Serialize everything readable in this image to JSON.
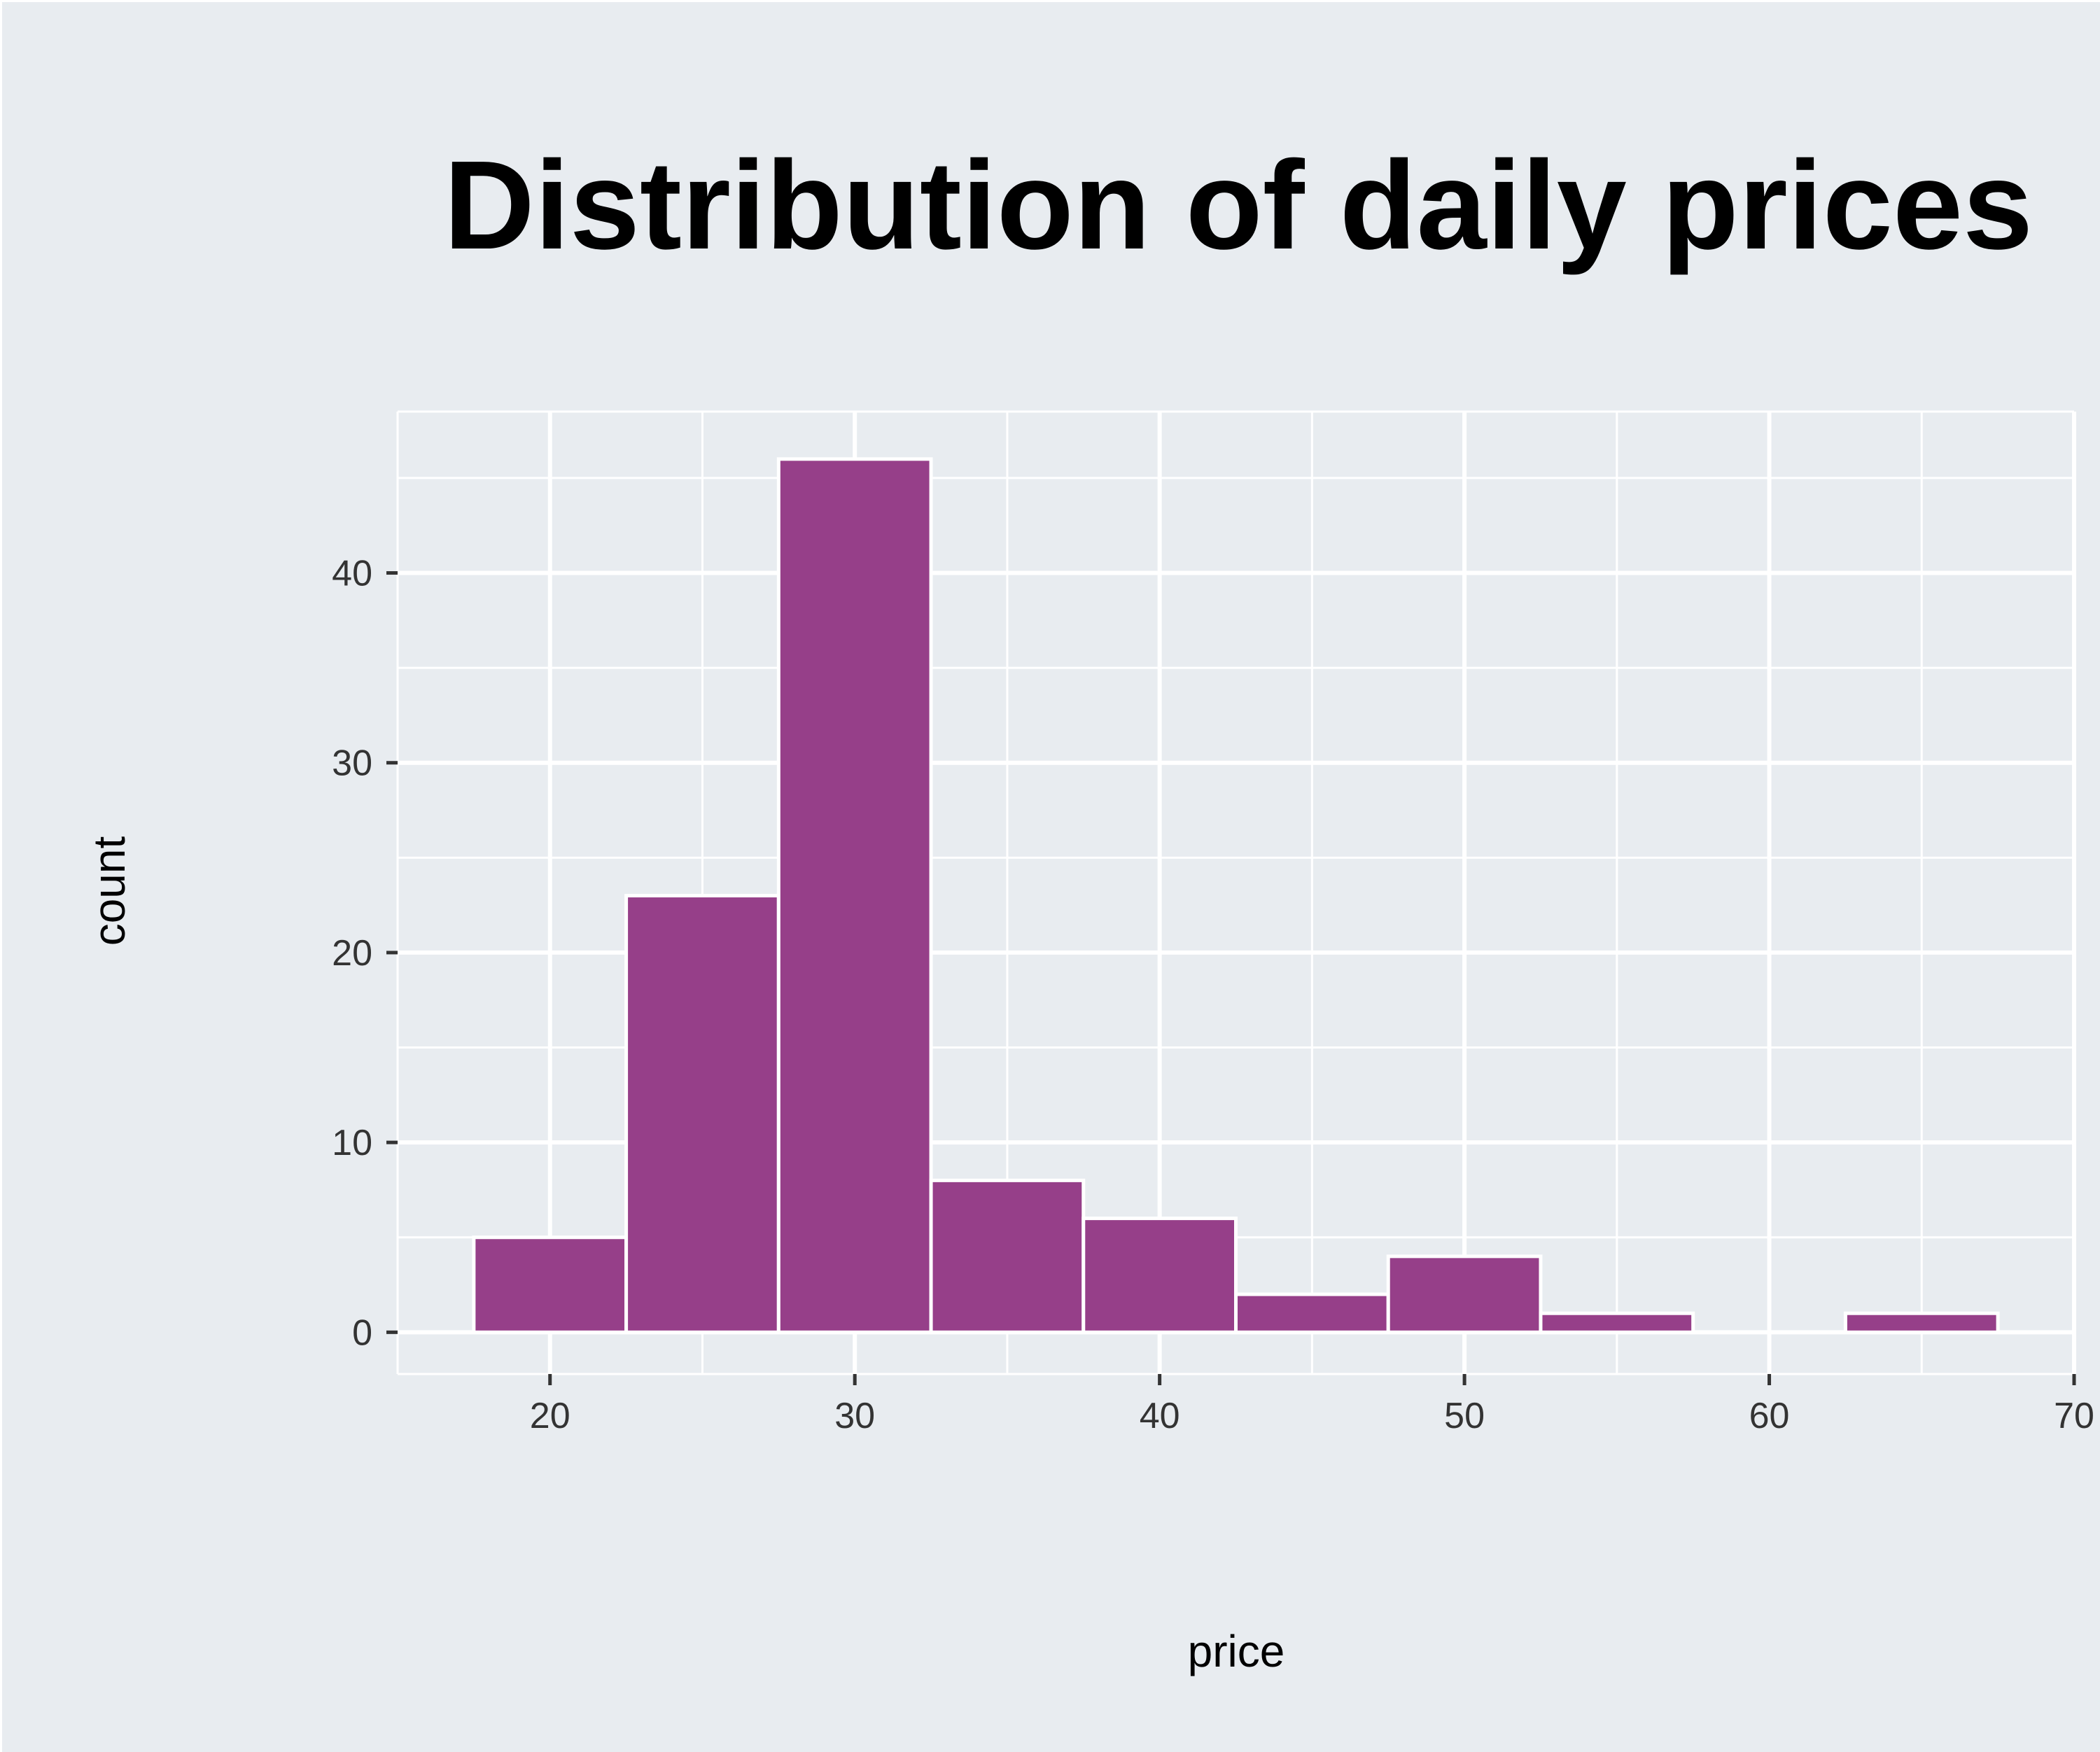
{
  "chart_data": {
    "type": "bar",
    "title": "Distribution of daily prices",
    "xlabel": "price",
    "ylabel": "count",
    "bin_width": 5,
    "bins": [
      {
        "start": 17.5,
        "end": 22.5,
        "count": 5
      },
      {
        "start": 22.5,
        "end": 27.5,
        "count": 23
      },
      {
        "start": 27.5,
        "end": 32.5,
        "count": 46
      },
      {
        "start": 32.5,
        "end": 37.5,
        "count": 8
      },
      {
        "start": 37.5,
        "end": 42.5,
        "count": 6
      },
      {
        "start": 42.5,
        "end": 47.5,
        "count": 2
      },
      {
        "start": 47.5,
        "end": 52.5,
        "count": 4
      },
      {
        "start": 52.5,
        "end": 57.5,
        "count": 1
      },
      {
        "start": 57.5,
        "end": 62.5,
        "count": 0
      },
      {
        "start": 62.5,
        "end": 67.5,
        "count": 1
      }
    ],
    "xlim": [
      15,
      70
    ],
    "ylim": [
      -2.2,
      48.5
    ],
    "x_ticks": [
      20,
      30,
      40,
      50,
      60,
      70
    ],
    "x_minor": [
      25,
      35,
      45,
      55,
      65
    ],
    "y_ticks": [
      0,
      10,
      20,
      30,
      40
    ],
    "y_minor": [
      5,
      15,
      25,
      35,
      45
    ],
    "grid": true,
    "colors": {
      "background": "#e8ecf0",
      "panel": "#e8ecf0",
      "bar_fill": "#963f89",
      "bar_edge": "#ffffff",
      "grid": "#ffffff",
      "tick_mark": "#333333"
    }
  }
}
